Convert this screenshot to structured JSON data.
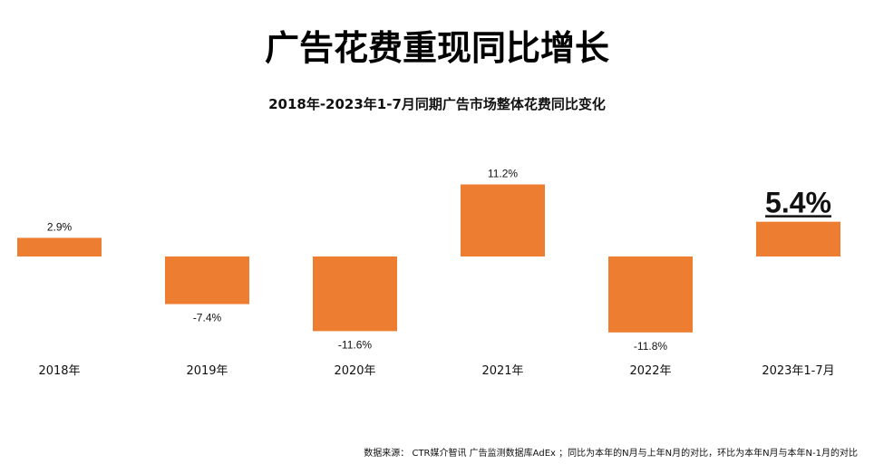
{
  "title": "广告花费重现同比增长",
  "chart_data": {
    "type": "bar",
    "title": "2018年-2023年1-7月同期广告市场整体花费同比变化",
    "categories": [
      "2018年",
      "2019年",
      "2020年",
      "2021年",
      "2022年",
      "2023年1-7月"
    ],
    "values": [
      2.9,
      -7.4,
      -11.6,
      11.2,
      -11.8,
      5.4
    ],
    "data_labels": [
      "2.9%",
      "-7.4%",
      "-11.6%",
      "11.2%",
      "-11.8%",
      "5.4%"
    ],
    "highlight_index": 5,
    "bar_color": "#ED7D31",
    "grid": false,
    "legend": "none"
  },
  "source": "数据来源： CTR媒介智讯 广告监测数据库AdEx ；同比为本年的N月与上年N月的对比，环比为本年N月与本年N-1月的对比"
}
